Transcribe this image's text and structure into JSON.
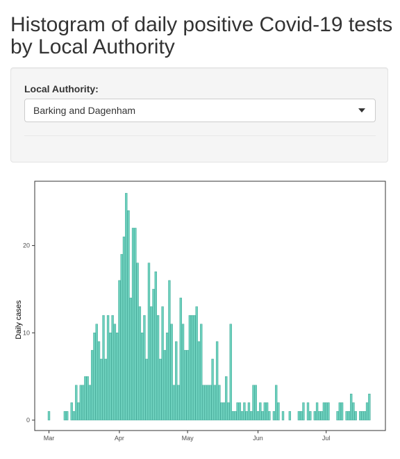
{
  "page": {
    "title": "Histogram of daily positive Covid-19 tests by Local Authority"
  },
  "control": {
    "label": "Local Authority:",
    "selected": "Barking and Dagenham"
  },
  "colors": {
    "bar_fill": "#6dd0bd",
    "bar_stroke": "#3fa896",
    "panel_border": "#333333"
  },
  "chart_data": {
    "type": "bar",
    "xlabel": "",
    "ylabel": "Daily cases",
    "x_start": "2020-02-29",
    "x_end": "2020-07-24",
    "ylim": [
      0,
      27
    ],
    "y_ticks": [
      0,
      10,
      20
    ],
    "x_ticks": [
      {
        "label": "Mar",
        "date": "2020-03-01"
      },
      {
        "label": "Apr",
        "date": "2020-04-01"
      },
      {
        "label": "May",
        "date": "2020-05-01"
      },
      {
        "label": "Jun",
        "date": "2020-06-01"
      },
      {
        "label": "Jul",
        "date": "2020-07-01"
      }
    ],
    "grid": false,
    "start_date": "2020-03-01",
    "values": [
      1,
      0,
      0,
      0,
      0,
      0,
      0,
      1,
      1,
      0,
      2,
      1,
      4,
      2,
      4,
      4,
      5,
      5,
      4,
      8,
      10,
      11,
      9,
      7,
      12,
      7,
      12,
      10,
      12,
      11,
      10,
      16,
      19,
      21,
      26,
      24,
      14,
      22,
      22,
      18,
      13,
      10,
      12,
      7,
      18,
      13,
      15,
      17,
      12,
      7,
      13,
      8,
      10,
      16,
      11,
      4,
      9,
      4,
      14,
      11,
      8,
      8,
      12,
      12,
      12,
      13,
      9,
      11,
      4,
      4,
      4,
      4,
      7,
      4,
      9,
      4,
      2,
      2,
      5,
      2,
      11,
      1,
      1,
      2,
      2,
      1,
      2,
      1,
      2,
      1,
      4,
      4,
      1,
      2,
      1,
      2,
      2,
      1,
      0,
      1,
      4,
      2,
      0,
      1,
      0,
      0,
      1,
      0,
      0,
      0,
      1,
      1,
      2,
      0,
      2,
      1,
      0,
      1,
      2,
      1,
      1,
      2,
      2,
      2,
      0,
      0,
      0,
      1,
      2,
      2,
      0,
      1,
      1,
      3,
      2,
      1,
      0,
      1,
      1,
      1,
      2,
      3,
      0
    ]
  }
}
